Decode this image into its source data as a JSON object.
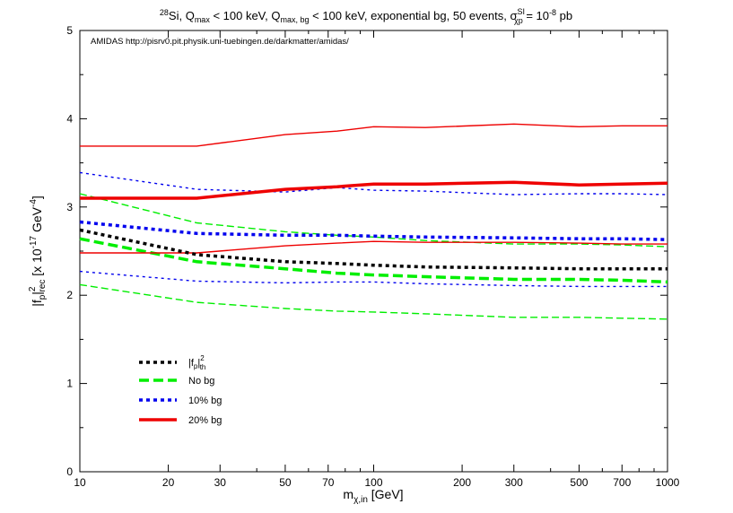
{
  "chart_data": {
    "type": "line",
    "title": {
      "isotope_sup": "28",
      "main_a": "Si, Q",
      "qmax_sub": "max",
      "main_b": " < 100 keV, Q",
      "qmaxbg_sub": "max, bg",
      "main_c": " < 100 keV, exponential bg, 50 events, σ",
      "sigma_sup": "SI",
      "sigma_sub": "χp",
      "main_d": " = 10",
      "exp_sup": "-8",
      "main_e": " pb"
    },
    "annotation": "AMIDAS   http://pisrv0.pit.physik.uni-tuebingen.de/darkmatter/amidas/",
    "xlabel": {
      "main": "m",
      "sub": "χ,in",
      "rest": " [GeV]"
    },
    "ylabel": {
      "a": "|f",
      "p_sub": "p",
      "b": "|",
      "sq_sup": "2",
      "rec_sub": "rec",
      "c": "  [x 10",
      "exp1_sup": "-17",
      "d": " GeV",
      "exp2_sup": "-4",
      "e": "]"
    },
    "x_scale": "log",
    "xlim": [
      10,
      1000
    ],
    "ylim": [
      0,
      5
    ],
    "x_ticks": [
      10,
      20,
      30,
      50,
      70,
      100,
      200,
      300,
      500,
      700,
      1000
    ],
    "x_tick_labels": [
      "10",
      "20",
      "30",
      "50",
      "70",
      "100",
      "200",
      "300",
      "500",
      "700",
      "1000"
    ],
    "y_ticks": [
      0,
      1,
      2,
      3,
      4,
      5
    ],
    "y_tick_labels": [
      "0",
      "1",
      "2",
      "3",
      "4",
      "5"
    ],
    "grid": false,
    "legend_position": "lower-left",
    "legend": [
      {
        "key": "th",
        "label_a": "|f",
        "label_sub": "p",
        "label_b": "|",
        "label_sup": "2",
        "label_sub2": "th",
        "color": "#000000",
        "dash": "dotted"
      },
      {
        "key": "nobg",
        "label": "No bg",
        "color": "#00ee00",
        "dash": "dashed"
      },
      {
        "key": "bg10",
        "label": "10% bg",
        "color": "#0000ee",
        "dash": "dotted"
      },
      {
        "key": "bg20",
        "label": "20% bg",
        "color": "#ee0000",
        "dash": "solid"
      }
    ],
    "x": [
      10,
      25,
      50,
      75,
      100,
      150,
      300,
      500,
      700,
      1000
    ],
    "series": [
      {
        "group": "th",
        "role": "central",
        "values": [
          2.74,
          2.46,
          2.38,
          2.36,
          2.34,
          2.32,
          2.31,
          2.3,
          2.3,
          2.3
        ]
      },
      {
        "group": "nobg",
        "role": "central",
        "values": [
          2.64,
          2.38,
          2.3,
          2.25,
          2.23,
          2.21,
          2.18,
          2.18,
          2.17,
          2.15
        ]
      },
      {
        "group": "nobg",
        "role": "upper",
        "values": [
          3.15,
          2.82,
          2.72,
          2.68,
          2.66,
          2.62,
          2.58,
          2.58,
          2.57,
          2.55
        ]
      },
      {
        "group": "nobg",
        "role": "lower",
        "values": [
          2.12,
          1.92,
          1.85,
          1.82,
          1.81,
          1.79,
          1.75,
          1.75,
          1.74,
          1.73
        ]
      },
      {
        "group": "bg10",
        "role": "central",
        "values": [
          2.83,
          2.7,
          2.68,
          2.68,
          2.67,
          2.66,
          2.65,
          2.64,
          2.64,
          2.63
        ]
      },
      {
        "group": "bg10",
        "role": "upper",
        "values": [
          3.39,
          3.2,
          3.17,
          3.22,
          3.19,
          3.18,
          3.14,
          3.15,
          3.15,
          3.14
        ]
      },
      {
        "group": "bg10",
        "role": "lower",
        "values": [
          2.27,
          2.16,
          2.14,
          2.15,
          2.15,
          2.13,
          2.11,
          2.1,
          2.1,
          2.1
        ]
      },
      {
        "group": "bg20",
        "role": "central",
        "values": [
          3.1,
          3.1,
          3.2,
          3.23,
          3.26,
          3.26,
          3.28,
          3.25,
          3.26,
          3.27
        ]
      },
      {
        "group": "bg20",
        "role": "upper",
        "values": [
          3.69,
          3.69,
          3.82,
          3.86,
          3.91,
          3.9,
          3.94,
          3.91,
          3.92,
          3.92
        ]
      },
      {
        "group": "bg20",
        "role": "lower",
        "values": [
          2.48,
          2.48,
          2.56,
          2.59,
          2.61,
          2.6,
          2.6,
          2.59,
          2.58,
          2.58
        ]
      }
    ]
  }
}
